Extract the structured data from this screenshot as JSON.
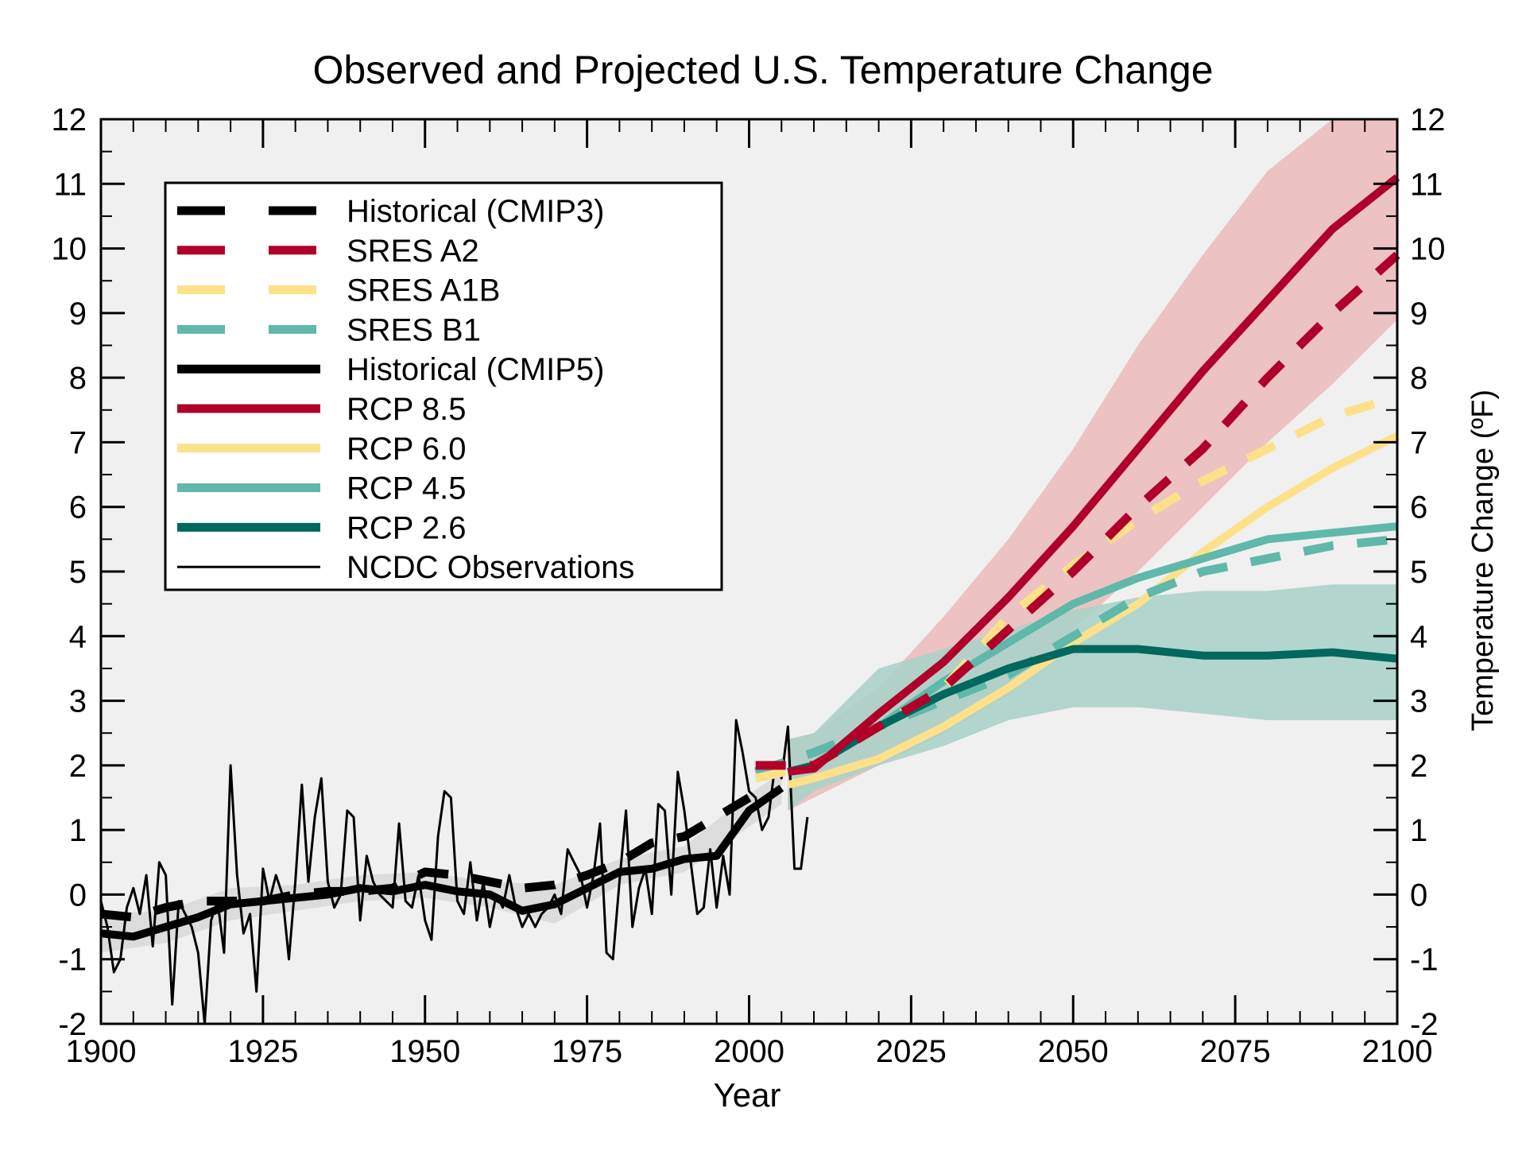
{
  "chart_data": {
    "type": "line",
    "title": "Observed and Projected U.S. Temperature Change",
    "xlabel": "Year",
    "ylabel_right": "Temperature Change (ºF)",
    "xlim": [
      1900,
      2100
    ],
    "ylim": [
      -2,
      12
    ],
    "xticks": [
      "1900",
      "1925",
      "1950",
      "1975",
      "2000",
      "2025",
      "2050",
      "2075",
      "2100"
    ],
    "yticks": [
      "-2",
      "-1",
      "0",
      "1",
      "2",
      "3",
      "4",
      "5",
      "6",
      "7",
      "8",
      "9",
      "10",
      "11",
      "12"
    ],
    "grid": false,
    "legend_position": "top-left",
    "colors": {
      "black": "#000000",
      "red": "#b0002a",
      "yellow": "#fde18a",
      "teal": "#5fb8aa",
      "dark_teal": "#00685c",
      "band_red": "#ebbcbd",
      "band_teal": "#abd1c9",
      "band_grey": "#d9d9d9",
      "plot_bg": "#f0f0f0"
    },
    "series": [
      {
        "name": "Historical (CMIP3)",
        "style": "dashed",
        "color": "#000000",
        "x": [
          1900,
          1905,
          1910,
          1915,
          1920,
          1925,
          1930,
          1935,
          1940,
          1945,
          1950,
          1955,
          1960,
          1965,
          1970,
          1975,
          1980,
          1985,
          1990,
          1995,
          2000
        ],
        "y": [
          -0.3,
          -0.35,
          -0.2,
          -0.1,
          -0.1,
          -0.1,
          0.0,
          0.05,
          0.05,
          0.1,
          0.35,
          0.3,
          0.2,
          0.1,
          0.15,
          0.3,
          0.5,
          0.8,
          0.9,
          1.2,
          1.5
        ]
      },
      {
        "name": "SRES A2",
        "style": "dashed",
        "color": "#b0002a",
        "x": [
          2001,
          2010,
          2020,
          2030,
          2040,
          2050,
          2060,
          2070,
          2080,
          2090,
          2100
        ],
        "y": [
          2.0,
          2.0,
          2.6,
          3.2,
          4.1,
          5.0,
          6.0,
          6.9,
          8.0,
          9.0,
          9.9
        ]
      },
      {
        "name": "SRES A1B",
        "style": "dashed",
        "color": "#fde18a",
        "x": [
          2001,
          2010,
          2020,
          2030,
          2040,
          2050,
          2060,
          2070,
          2080,
          2090,
          2100
        ],
        "y": [
          1.8,
          2.0,
          2.6,
          3.2,
          4.3,
          5.1,
          5.8,
          6.4,
          6.9,
          7.4,
          7.7
        ]
      },
      {
        "name": "SRES B1",
        "style": "dashed",
        "color": "#5fb8aa",
        "x": [
          2001,
          2010,
          2020,
          2030,
          2040,
          2050,
          2060,
          2070,
          2080,
          2090,
          2100
        ],
        "y": [
          1.9,
          2.2,
          2.6,
          3.0,
          3.4,
          4.0,
          4.6,
          5.0,
          5.2,
          5.4,
          5.5
        ]
      },
      {
        "name": "Historical (CMIP5)",
        "style": "solid",
        "color": "#000000",
        "x": [
          1900,
          1905,
          1910,
          1915,
          1920,
          1925,
          1930,
          1935,
          1940,
          1945,
          1950,
          1955,
          1960,
          1965,
          1970,
          1975,
          1980,
          1985,
          1990,
          1995,
          2000,
          2005
        ],
        "y": [
          -0.6,
          -0.65,
          -0.5,
          -0.35,
          -0.15,
          -0.1,
          -0.05,
          0.0,
          0.1,
          0.05,
          0.15,
          0.05,
          0.0,
          -0.25,
          -0.15,
          0.1,
          0.35,
          0.4,
          0.55,
          0.6,
          1.3,
          1.65
        ]
      },
      {
        "name": "RCP 8.5",
        "style": "solid",
        "color": "#b0002a",
        "x": [
          2006,
          2010,
          2020,
          2030,
          2040,
          2050,
          2060,
          2070,
          2080,
          2090,
          2100
        ],
        "y": [
          1.9,
          1.95,
          2.8,
          3.6,
          4.6,
          5.7,
          6.9,
          8.1,
          9.2,
          10.3,
          11.1
        ]
      },
      {
        "name": "RCP 6.0",
        "style": "solid",
        "color": "#fde18a",
        "x": [
          2006,
          2010,
          2020,
          2030,
          2040,
          2050,
          2060,
          2070,
          2080,
          2090,
          2100
        ],
        "y": [
          1.7,
          1.8,
          2.1,
          2.6,
          3.2,
          3.9,
          4.5,
          5.3,
          6.0,
          6.6,
          7.1
        ]
      },
      {
        "name": "RCP 4.5",
        "style": "solid",
        "color": "#5fb8aa",
        "x": [
          2006,
          2010,
          2020,
          2030,
          2040,
          2050,
          2060,
          2070,
          2080,
          2090,
          2100
        ],
        "y": [
          1.9,
          2.0,
          2.6,
          3.3,
          3.9,
          4.5,
          4.9,
          5.2,
          5.5,
          5.6,
          5.7
        ]
      },
      {
        "name": "RCP 2.6",
        "style": "solid",
        "color": "#00685c",
        "x": [
          2006,
          2010,
          2020,
          2030,
          2040,
          2050,
          2060,
          2070,
          2080,
          2090,
          2100
        ],
        "y": [
          1.9,
          2.0,
          2.6,
          3.1,
          3.5,
          3.8,
          3.8,
          3.7,
          3.7,
          3.75,
          3.65
        ]
      },
      {
        "name": "NCDC Observations",
        "style": "thin",
        "color": "#000000",
        "x": [
          1900,
          1901,
          1902,
          1903,
          1904,
          1905,
          1906,
          1907,
          1908,
          1909,
          1910,
          1911,
          1912,
          1913,
          1914,
          1915,
          1916,
          1917,
          1918,
          1919,
          1920,
          1921,
          1922,
          1923,
          1924,
          1925,
          1926,
          1927,
          1928,
          1929,
          1930,
          1931,
          1932,
          1933,
          1934,
          1935,
          1936,
          1937,
          1938,
          1939,
          1940,
          1941,
          1942,
          1943,
          1944,
          1945,
          1946,
          1947,
          1948,
          1949,
          1950,
          1951,
          1952,
          1953,
          1954,
          1955,
          1956,
          1957,
          1958,
          1959,
          1960,
          1961,
          1962,
          1963,
          1964,
          1965,
          1966,
          1967,
          1968,
          1969,
          1970,
          1971,
          1972,
          1973,
          1974,
          1975,
          1976,
          1977,
          1978,
          1979,
          1980,
          1981,
          1982,
          1983,
          1984,
          1985,
          1986,
          1987,
          1988,
          1989,
          1990,
          1991,
          1992,
          1993,
          1994,
          1995,
          1996,
          1997,
          1998,
          1999,
          2000,
          2001,
          2002,
          2003,
          2004,
          2005,
          2006,
          2007,
          2008,
          2009
        ],
        "y": [
          -0.1,
          -0.5,
          -1.2,
          -1.0,
          -0.2,
          0.1,
          -0.3,
          0.3,
          -0.8,
          0.5,
          0.3,
          -1.7,
          -0.1,
          -0.3,
          -0.5,
          -0.9,
          -2.0,
          -0.4,
          -0.1,
          -0.9,
          2.0,
          0.3,
          -0.6,
          -0.3,
          -1.5,
          0.4,
          -0.1,
          0.3,
          0.0,
          -1.0,
          0.2,
          1.7,
          0.2,
          1.2,
          1.8,
          0.2,
          -0.2,
          0.0,
          1.3,
          1.2,
          -0.4,
          0.6,
          0.2,
          0.0,
          -0.1,
          -0.2,
          1.1,
          -0.1,
          -0.2,
          0.3,
          -0.4,
          -0.7,
          0.9,
          1.6,
          1.5,
          -0.1,
          -0.3,
          0.5,
          -0.4,
          0.2,
          -0.5,
          0.0,
          -0.2,
          0.3,
          -0.2,
          -0.5,
          -0.3,
          -0.5,
          -0.3,
          -0.2,
          0.0,
          -0.3,
          0.7,
          0.5,
          0.3,
          -0.2,
          0.3,
          1.1,
          -0.9,
          -1.0,
          0.2,
          1.3,
          -0.5,
          0.1,
          0.4,
          -0.3,
          1.4,
          1.3,
          0.0,
          1.9,
          1.3,
          0.5,
          -0.3,
          -0.2,
          0.7,
          -0.2,
          0.6,
          0.0,
          2.7,
          2.2,
          1.6,
          1.5,
          1.0,
          1.2,
          2.0,
          1.8,
          2.6,
          0.4,
          0.4,
          1.2
        ]
      }
    ],
    "bands": [
      {
        "label": "RCP 8.5 range",
        "color": "#ebbcbd",
        "x": [
          2006,
          2010,
          2020,
          2030,
          2040,
          2050,
          2060,
          2070,
          2080,
          2090,
          2100
        ],
        "lower": [
          1.3,
          1.5,
          2.0,
          2.5,
          3.1,
          4.1,
          5.0,
          6.0,
          7.0,
          7.9,
          8.9
        ],
        "upper": [
          2.4,
          2.5,
          3.2,
          4.3,
          5.5,
          6.9,
          8.5,
          9.9,
          11.2,
          12.0,
          12.0
        ]
      },
      {
        "label": "RCP 2.6 range",
        "color": "#abd1c9",
        "x": [
          2006,
          2010,
          2020,
          2030,
          2040,
          2050,
          2060,
          2070,
          2080,
          2090,
          2100
        ],
        "lower": [
          1.3,
          1.6,
          2.0,
          2.3,
          2.7,
          2.9,
          2.9,
          2.8,
          2.7,
          2.7,
          2.7
        ],
        "upper": [
          2.4,
          2.5,
          3.5,
          3.8,
          4.1,
          4.4,
          4.6,
          4.7,
          4.7,
          4.8,
          4.8
        ]
      },
      {
        "label": "Historical (CMIP5) range",
        "color": "#d9d9d9",
        "x": [
          1900,
          1910,
          1920,
          1930,
          1940,
          1950,
          1960,
          1970,
          1980,
          1990,
          2000,
          2005
        ],
        "lower": [
          -0.9,
          -0.75,
          -0.4,
          -0.25,
          -0.1,
          -0.05,
          -0.2,
          -0.45,
          0.15,
          0.35,
          1.05,
          1.4
        ],
        "upper": [
          -0.3,
          -0.25,
          0.1,
          0.15,
          0.3,
          0.35,
          0.2,
          0.15,
          0.55,
          0.75,
          1.55,
          1.9
        ]
      }
    ]
  }
}
